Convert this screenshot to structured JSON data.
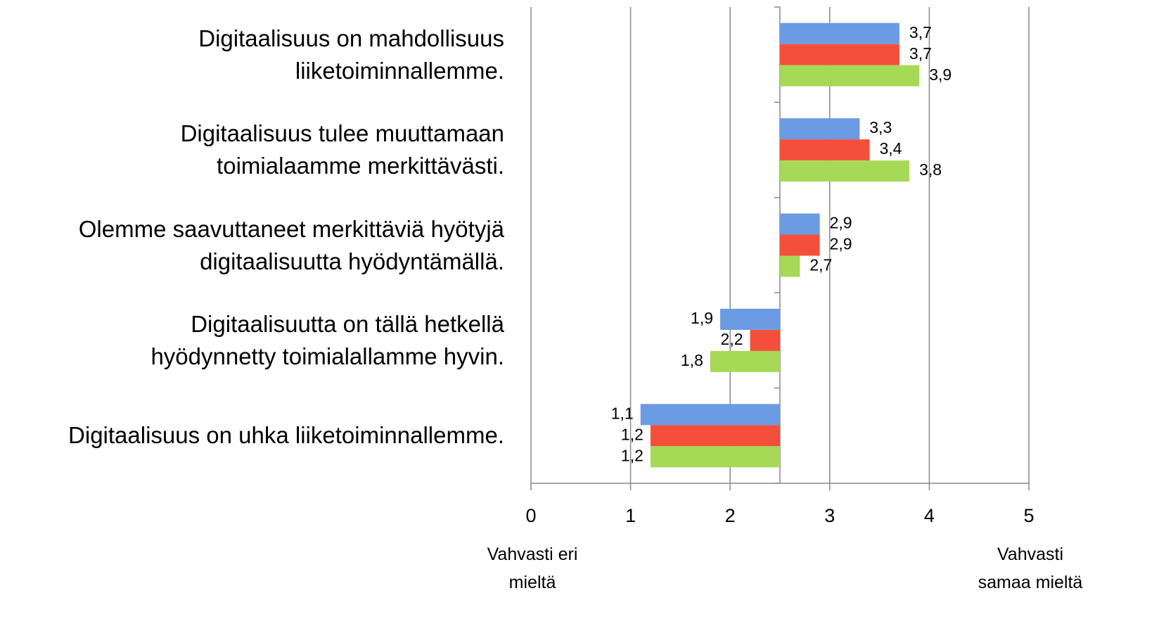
{
  "chart_data": {
    "type": "hbar",
    "categories": [
      "Digitaalisuus on mahdollisuus\nliiketoiminnallemme.",
      "Digitaalisuus tulee muuttamaan\ntoimialaamme merkittävästi.",
      "Olemme saavuttaneet merkittäviä hyötyjä\ndigitaalisuutta hyödyntämällä.",
      "Digitaalisuutta on tällä hetkellä\nhyödynnetty toimialallamme hyvin.",
      "Digitaalisuus on uhka liiketoiminnallemme."
    ],
    "series": [
      {
        "color": "#6a9be3",
        "values": [
          3.7,
          3.3,
          2.9,
          1.9,
          1.1
        ],
        "value_labels": [
          "3,7",
          "3,3",
          "2,9",
          "1,9",
          "1,1"
        ]
      },
      {
        "color": "#f44f3b",
        "values": [
          3.7,
          3.4,
          2.9,
          2.2,
          1.2
        ],
        "value_labels": [
          "3,7",
          "3,4",
          "2,9",
          "2,2",
          "1,2"
        ]
      },
      {
        "color": "#a6d955",
        "values": [
          3.9,
          3.8,
          2.7,
          1.8,
          1.2
        ],
        "value_labels": [
          "3,9",
          "3,8",
          "2,7",
          "1,8",
          "1,2"
        ]
      }
    ],
    "xlim": [
      0,
      5
    ],
    "xticks": [
      0,
      1,
      2,
      3,
      4,
      5
    ],
    "baseline": 2.5,
    "grid": true,
    "xlabel_left": "Vahvasti eri\nmieltä",
    "xlabel_right": "Vahvasti\nsamaa mieltä"
  }
}
